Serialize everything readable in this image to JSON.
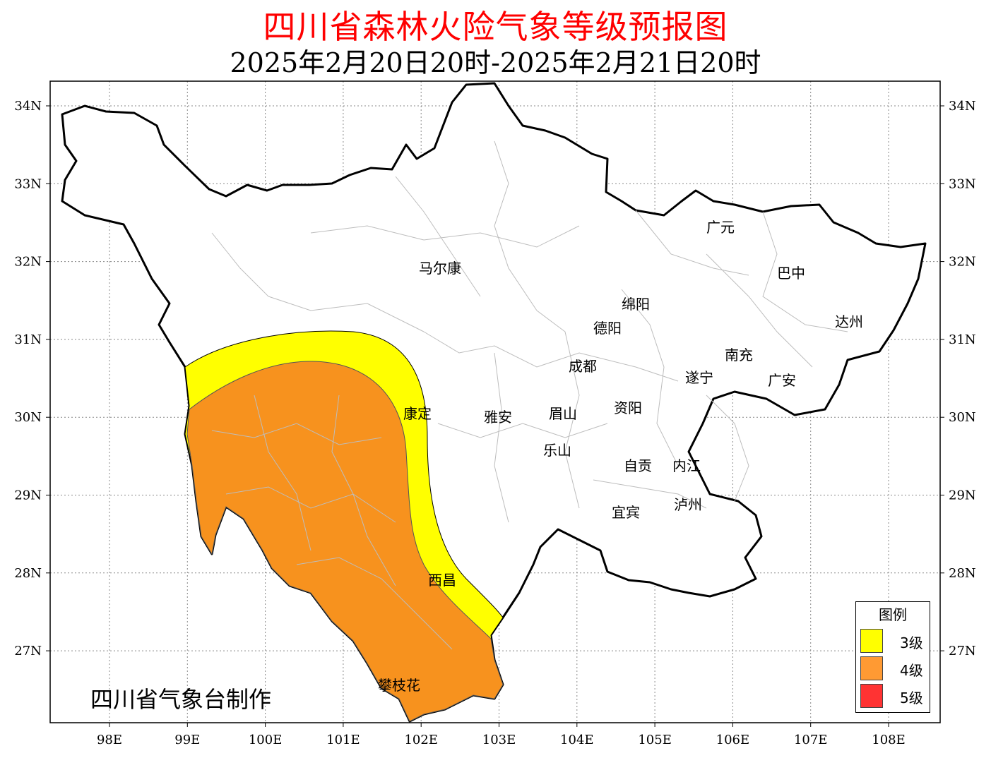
{
  "title": "四川省森林火险气象等级预报图",
  "subtitle": "2025年2月20日20时-2025年2月21日20时",
  "credit": "四川省气象台制作",
  "lon_ticks": [
    "98E",
    "99E",
    "100E",
    "101E",
    "102E",
    "103E",
    "104E",
    "105E",
    "106E",
    "107E",
    "108E"
  ],
  "lat_ticks": [
    "34N",
    "33N",
    "32N",
    "31N",
    "30N",
    "29N",
    "28N",
    "27N"
  ],
  "cities": [
    "广元",
    "马尔康",
    "巴中",
    "绵阳",
    "达州",
    "德阳",
    "南充",
    "成都",
    "遂宁",
    "广安",
    "康定",
    "雅安",
    "眉山",
    "资阳",
    "乐山",
    "自贡",
    "内江",
    "宜宾",
    "泸州",
    "西昌",
    "攀枝花"
  ],
  "legend": {
    "title": "图例",
    "items": [
      {
        "label": "3级",
        "color": "#ffff00"
      },
      {
        "label": "4级",
        "color": "#ff9a33"
      },
      {
        "label": "5级",
        "color": "#ff3333"
      }
    ]
  },
  "colors": {
    "level3": "#ffff00",
    "level4": "#f7921e",
    "title": "#ff0000"
  }
}
